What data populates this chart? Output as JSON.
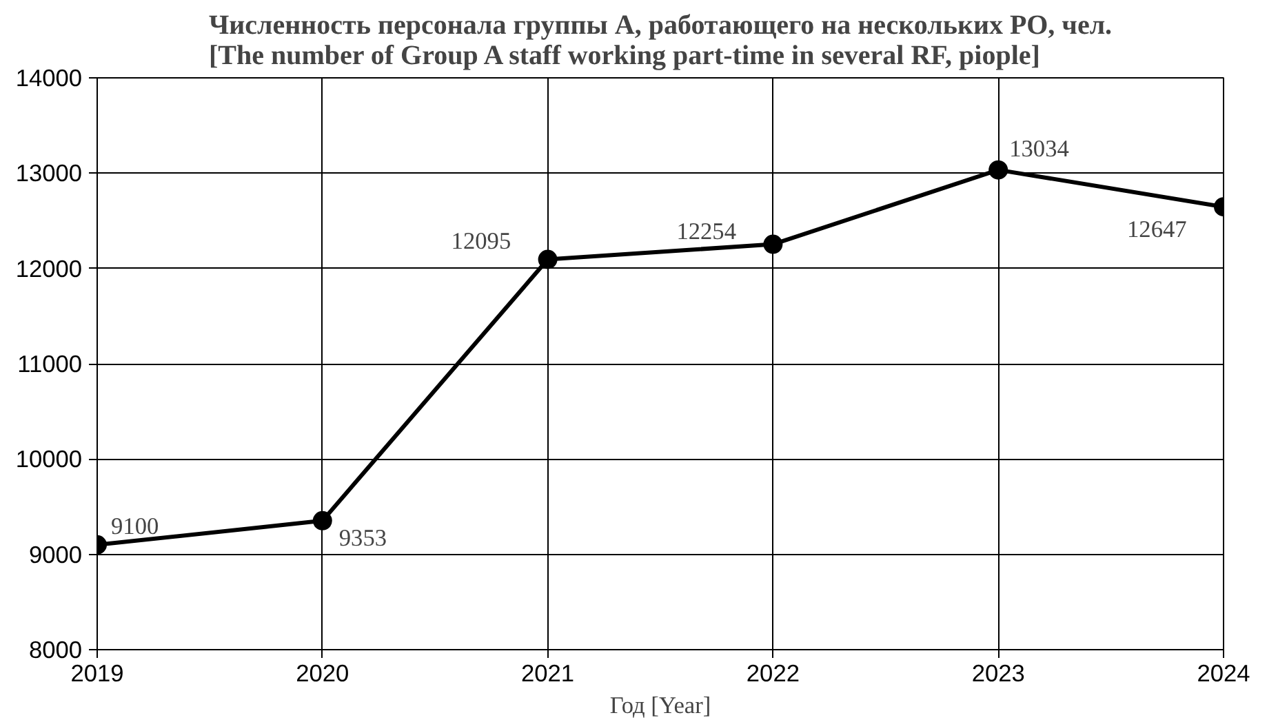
{
  "chart_data": {
    "type": "line",
    "title": "Численность персонала группы А, работающего на нескольких РО, чел.\n[The number of Group A staff working part-time in several RF, piople]",
    "xlabel": "Год [Year]",
    "x": [
      2019,
      2020,
      2021,
      2022,
      2023,
      2024
    ],
    "series": [
      {
        "color": "#000000",
        "values": [
          9100,
          9353,
          12095,
          12254,
          13034,
          12647
        ]
      }
    ],
    "xlim": [
      2019,
      2024
    ],
    "xticks": [
      2019,
      2020,
      2021,
      2022,
      2023,
      2024
    ],
    "ylim": [
      8000,
      14000
    ],
    "yticks": [
      8000,
      9000,
      10000,
      11000,
      12000,
      13000,
      14000
    ],
    "grid": true,
    "marker": "circle",
    "line_style": "solid",
    "data_labels": true
  }
}
